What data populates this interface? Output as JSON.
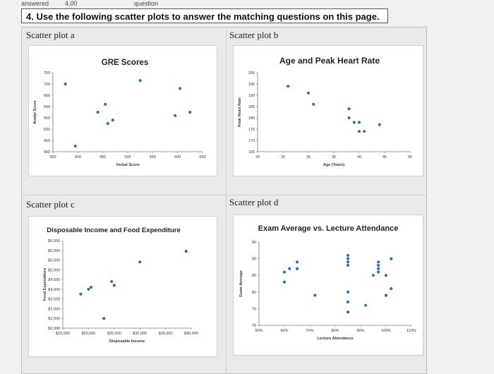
{
  "header": {
    "status": "answered",
    "points": "4.00",
    "label": "question"
  },
  "question": {
    "text": "4. Use the following scatter plots to answer the matching questions on this page."
  },
  "panels": {
    "a_label": "Scatter plot a",
    "b_label": "Scatter plot b",
    "c_label": "Scatter plot c",
    "d_label": "Scatter plot d"
  },
  "chart_data": [
    {
      "type": "scatter",
      "title": "GRE Scores",
      "xlabel": "Verbal Score",
      "ylabel": "Analyt Score",
      "xlim": [
        350,
        650
      ],
      "ylim": [
        400,
        750
      ],
      "xticks": [
        "350",
        "400",
        "450",
        "500",
        "550",
        "600",
        "650"
      ],
      "yticks": [
        "400",
        "450",
        "500",
        "550",
        "600",
        "650",
        "700",
        "750"
      ],
      "points": [
        [
          375,
          700
        ],
        [
          395,
          425
        ],
        [
          440,
          575
        ],
        [
          455,
          610
        ],
        [
          460,
          525
        ],
        [
          470,
          540
        ],
        [
          525,
          715
        ],
        [
          595,
          560
        ],
        [
          605,
          680
        ],
        [
          625,
          575
        ]
      ]
    },
    {
      "type": "scatter",
      "title": "Age and Peak Heart Rate",
      "xlabel": "Age (Years)",
      "ylabel": "Peak Heart Rate",
      "xlim": [
        20,
        50
      ],
      "ylim": [
        165,
        200
      ],
      "xticks": [
        "20",
        "25",
        "30",
        "35",
        "40",
        "45",
        "50"
      ],
      "yticks": [
        "165",
        "170",
        "175",
        "180",
        "185",
        "190",
        "195",
        "200"
      ],
      "points": [
        [
          26,
          194
        ],
        [
          30,
          191
        ],
        [
          31,
          186
        ],
        [
          38,
          184
        ],
        [
          38,
          180
        ],
        [
          39,
          178
        ],
        [
          40,
          178
        ],
        [
          40,
          174
        ],
        [
          41,
          174
        ],
        [
          44,
          177
        ]
      ]
    },
    {
      "type": "scatter",
      "title": "Disposable Income and Food Expenditure",
      "xlabel": "Disposable Income",
      "ylabel": "Food Expenditure",
      "xlim": [
        15000,
        40000
      ],
      "ylim": [
        2000,
        6500
      ],
      "xticks": [
        "$15,000",
        "$20,000",
        "$25,000",
        "$30,000",
        "$35,000",
        "$40,000"
      ],
      "yticks": [
        "$2,000",
        "$2,500",
        "$3,000",
        "$3,500",
        "$4,000",
        "$4,500",
        "$5,000",
        "$5,500",
        "$6,000",
        "$6,500"
      ],
      "points": [
        [
          18500,
          3750
        ],
        [
          20000,
          4000
        ],
        [
          20500,
          4100
        ],
        [
          23000,
          2500
        ],
        [
          24500,
          4400
        ],
        [
          25000,
          4200
        ],
        [
          30000,
          5400
        ],
        [
          39000,
          5950
        ]
      ]
    },
    {
      "type": "scatter",
      "title": "Exam Average vs. Lecture Attendance",
      "xlabel": "Lecture Attendance",
      "ylabel": "Exam Average",
      "xlim": [
        50,
        110
      ],
      "ylim": [
        70,
        95
      ],
      "xticks": [
        "50%",
        "60%",
        "70%",
        "80%",
        "90%",
        "100%",
        "110%"
      ],
      "yticks": [
        "70",
        "75",
        "80",
        "85",
        "90",
        "95"
      ],
      "points": [
        [
          60,
          83
        ],
        [
          60,
          86
        ],
        [
          62,
          87
        ],
        [
          65,
          89
        ],
        [
          65,
          87
        ],
        [
          72,
          79
        ],
        [
          85,
          91
        ],
        [
          85,
          90
        ],
        [
          85,
          89
        ],
        [
          85,
          88
        ],
        [
          85,
          80
        ],
        [
          85,
          77
        ],
        [
          85,
          74
        ],
        [
          92,
          76
        ],
        [
          95,
          85
        ],
        [
          97,
          88
        ],
        [
          97,
          87
        ],
        [
          97,
          86
        ],
        [
          97,
          89
        ],
        [
          100,
          79
        ],
        [
          100,
          85
        ],
        [
          102,
          90
        ],
        [
          102,
          81
        ]
      ]
    }
  ]
}
